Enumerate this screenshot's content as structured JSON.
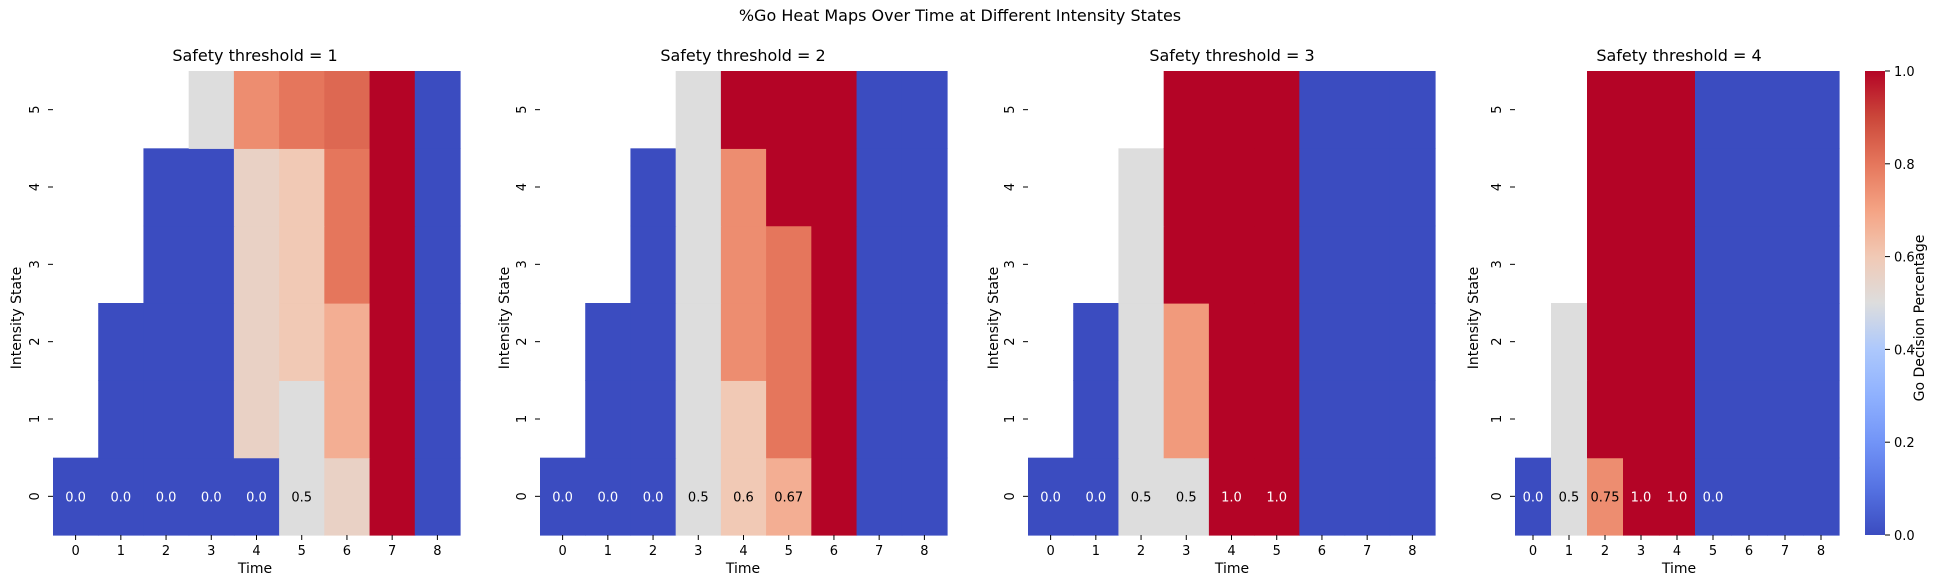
{
  "figure": {
    "suptitle": "%Go Heat Maps Over Time at Different Intensity States"
  },
  "colorbar": {
    "label": "Go Decision Percentage",
    "ticks": [
      "0.0",
      "0.2",
      "0.4",
      "0.6",
      "0.8",
      "1.0"
    ],
    "colormap": "coolwarm"
  },
  "colors": {
    "nan": "#ffffff",
    "axis_text": "#000000",
    "annotation_dark": "#000000",
    "annotation_light": "#ffffff"
  },
  "chart_data": [
    {
      "type": "heatmap",
      "title": "Safety threshold = 1",
      "xlabel": "Time",
      "ylabel": "Intensity State",
      "x": [
        0,
        1,
        2,
        3,
        4,
        5,
        6,
        7,
        8
      ],
      "y": [
        0,
        1,
        2,
        3,
        4,
        5
      ],
      "vmin": 0,
      "vmax": 1,
      "values": [
        [
          0.0,
          0.0,
          0.0,
          0.0,
          0.0,
          0.5,
          0.56,
          1.0,
          0.0
        ],
        [
          null,
          0.0,
          0.0,
          0.0,
          0.56,
          0.5,
          0.67,
          1.0,
          0.0
        ],
        [
          null,
          0.0,
          0.0,
          0.0,
          0.56,
          0.6,
          0.67,
          1.0,
          0.0
        ],
        [
          null,
          null,
          0.0,
          0.0,
          0.56,
          0.6,
          0.8,
          1.0,
          0.0
        ],
        [
          null,
          null,
          0.0,
          0.0,
          0.56,
          0.6,
          0.8,
          1.0,
          0.0
        ],
        [
          null,
          null,
          null,
          0.5,
          0.75,
          0.8,
          0.83,
          1.0,
          0.0
        ]
      ],
      "annotations": [
        "0.0",
        "0.0",
        "0.0",
        "0.0",
        "0.0",
        "0.5",
        "",
        "",
        ""
      ]
    },
    {
      "type": "heatmap",
      "title": "Safety threshold = 2",
      "xlabel": "Time",
      "ylabel": "Intensity State",
      "x": [
        0,
        1,
        2,
        3,
        4,
        5,
        6,
        7,
        8
      ],
      "y": [
        0,
        1,
        2,
        3,
        4,
        5
      ],
      "vmin": 0,
      "vmax": 1,
      "values": [
        [
          0.0,
          0.0,
          0.0,
          0.5,
          0.6,
          0.67,
          1.0,
          0.0,
          0.0
        ],
        [
          null,
          0.0,
          0.0,
          0.5,
          0.6,
          0.8,
          1.0,
          0.0,
          0.0
        ],
        [
          null,
          0.0,
          0.0,
          0.5,
          0.75,
          0.8,
          1.0,
          0.0,
          0.0
        ],
        [
          null,
          null,
          0.0,
          0.5,
          0.75,
          0.8,
          1.0,
          0.0,
          0.0
        ],
        [
          null,
          null,
          0.0,
          0.5,
          0.75,
          1.0,
          1.0,
          0.0,
          0.0
        ],
        [
          null,
          null,
          null,
          0.5,
          1.0,
          1.0,
          1.0,
          0.0,
          0.0
        ]
      ],
      "annotations": [
        "0.0",
        "0.0",
        "0.0",
        "0.5",
        "0.6",
        "0.67",
        "",
        "",
        ""
      ]
    },
    {
      "type": "heatmap",
      "title": "Safety threshold = 3",
      "xlabel": "Time",
      "ylabel": "Intensity State",
      "x": [
        0,
        1,
        2,
        3,
        4,
        5,
        6,
        7,
        8
      ],
      "y": [
        0,
        1,
        2,
        3,
        4,
        5
      ],
      "vmin": 0,
      "vmax": 1,
      "values": [
        [
          0.0,
          0.0,
          0.5,
          0.5,
          1.0,
          1.0,
          0.0,
          0.0,
          0.0
        ],
        [
          null,
          0.0,
          0.5,
          0.72,
          1.0,
          1.0,
          0.0,
          0.0,
          0.0
        ],
        [
          null,
          0.0,
          0.5,
          0.72,
          1.0,
          1.0,
          0.0,
          0.0,
          0.0
        ],
        [
          null,
          null,
          0.5,
          1.0,
          1.0,
          1.0,
          0.0,
          0.0,
          0.0
        ],
        [
          null,
          null,
          0.5,
          1.0,
          1.0,
          1.0,
          0.0,
          0.0,
          0.0
        ],
        [
          null,
          null,
          null,
          1.0,
          1.0,
          1.0,
          0.0,
          0.0,
          0.0
        ]
      ],
      "annotations": [
        "0.0",
        "0.0",
        "0.5",
        "0.5",
        "1.0",
        "1.0",
        "",
        "",
        ""
      ]
    },
    {
      "type": "heatmap",
      "title": "Safety threshold = 4",
      "xlabel": "Time",
      "ylabel": "Intensity State",
      "x": [
        0,
        1,
        2,
        3,
        4,
        5,
        6,
        7,
        8
      ],
      "y": [
        0,
        1,
        2,
        3,
        4,
        5
      ],
      "vmin": 0,
      "vmax": 1,
      "values": [
        [
          0.0,
          0.5,
          0.75,
          1.0,
          1.0,
          0.0,
          0.0,
          0.0,
          0.0
        ],
        [
          null,
          0.5,
          1.0,
          1.0,
          1.0,
          0.0,
          0.0,
          0.0,
          0.0
        ],
        [
          null,
          0.5,
          1.0,
          1.0,
          1.0,
          0.0,
          0.0,
          0.0,
          0.0
        ],
        [
          null,
          null,
          1.0,
          1.0,
          1.0,
          0.0,
          0.0,
          0.0,
          0.0
        ],
        [
          null,
          null,
          1.0,
          1.0,
          1.0,
          0.0,
          0.0,
          0.0,
          0.0
        ],
        [
          null,
          null,
          1.0,
          1.0,
          1.0,
          0.0,
          0.0,
          0.0,
          0.0
        ]
      ],
      "annotations": [
        "0.0",
        "0.5",
        "0.75",
        "1.0",
        "1.0",
        "0.0",
        "",
        "",
        ""
      ]
    }
  ]
}
